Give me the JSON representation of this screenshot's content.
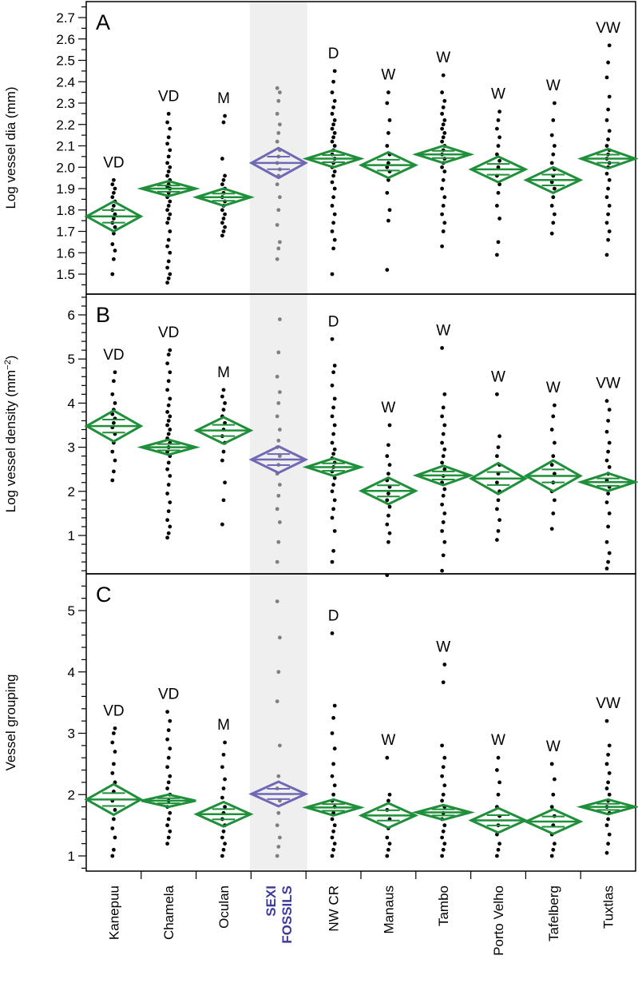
{
  "chart_data": {
    "type": "scatter",
    "figure_kind": "means-diamond dot plot (three stacked panels)",
    "categories": [
      "Kanepuu",
      "Chamela",
      "Oculan",
      "SEXI FOSSILS",
      "NW CR",
      "Manaus",
      "Tambo",
      "Porto Velho",
      "Tafelberg",
      "Tuxtlas"
    ],
    "category_label_lines": [
      [
        "Kanepuu"
      ],
      [
        "Chamela"
      ],
      [
        "Oculan"
      ],
      [
        "SEXI",
        "FOSSILS"
      ],
      [
        "NW CR"
      ],
      [
        "Manaus"
      ],
      [
        "Tambo"
      ],
      [
        "Porto Velho"
      ],
      [
        "Tafelberg"
      ],
      [
        "Tuxtlas"
      ]
    ],
    "highlight_category": "SEXI FOSSILS",
    "colors": {
      "diamond": "#1f8f3a",
      "fossil_diamond": "#6f68b4",
      "points": "#000000",
      "fossil_points": "#7f7f7f",
      "highlight_band": "#efefef",
      "highlight_label": "#3d3a9a"
    },
    "panels": [
      {
        "letter": "A",
        "ylabel": "Log  vessel dia (mm)",
        "ylim": [
          1.44,
          2.76
        ],
        "yticks": [
          1.5,
          1.6,
          1.7,
          1.8,
          1.9,
          2.0,
          2.1,
          2.2,
          2.3,
          2.4,
          2.5,
          2.6,
          2.7
        ],
        "ytick_labels": [
          "1.5",
          "1.6",
          "1.7",
          "1.8",
          "1.9",
          "2.0",
          "2.1",
          "2.2",
          "2.3",
          "2.4",
          "2.5",
          "2.6",
          "2.7"
        ],
        "group_labels": [
          "VD",
          "VD",
          "M",
          "",
          "D",
          "W",
          "W",
          "W",
          "W",
          "VW"
        ],
        "means": [
          1.77,
          1.9,
          1.86,
          2.02,
          2.04,
          2.01,
          2.06,
          1.99,
          1.94,
          2.04
        ],
        "ci_half": [
          0.07,
          0.035,
          0.04,
          0.07,
          0.04,
          0.06,
          0.04,
          0.06,
          0.06,
          0.045
        ],
        "points": [
          [
            1.5,
            1.57,
            1.61,
            1.64,
            1.69,
            1.72,
            1.74,
            1.76,
            1.78,
            1.8,
            1.82,
            1.84,
            1.86,
            1.88,
            1.9,
            1.92,
            1.94
          ],
          [
            1.46,
            1.48,
            1.5,
            1.53,
            1.56,
            1.6,
            1.63,
            1.66,
            1.7,
            1.74,
            1.76,
            1.78,
            1.8,
            1.82,
            1.84,
            1.86,
            1.88,
            1.9,
            1.91,
            1.92,
            1.94,
            1.96,
            1.98,
            2.0,
            2.02,
            2.05,
            2.08,
            2.11,
            2.14,
            2.18,
            2.21,
            2.25
          ],
          [
            1.68,
            1.7,
            1.72,
            1.74,
            1.76,
            1.78,
            1.8,
            1.82,
            1.84,
            1.86,
            1.88,
            1.9,
            1.92,
            1.94,
            1.96,
            2.04,
            2.21,
            2.24
          ],
          [
            1.57,
            1.62,
            1.65,
            1.73,
            1.8,
            1.86,
            1.92,
            1.96,
            1.99,
            2.02,
            2.05,
            2.08,
            2.12,
            2.16,
            2.2,
            2.25,
            2.31,
            2.35,
            2.37
          ],
          [
            1.5,
            1.62,
            1.66,
            1.7,
            1.74,
            1.78,
            1.82,
            1.86,
            1.9,
            1.93,
            1.96,
            1.98,
            2.0,
            2.02,
            2.04,
            2.06,
            2.08,
            2.1,
            2.12,
            2.14,
            2.16,
            2.18,
            2.2,
            2.22,
            2.25,
            2.28,
            2.31,
            2.35,
            2.4,
            2.45
          ],
          [
            1.52,
            1.75,
            1.8,
            1.88,
            1.94,
            1.98,
            2.0,
            2.02,
            2.06,
            2.1,
            2.16,
            2.22,
            2.3,
            2.35
          ],
          [
            1.63,
            1.7,
            1.74,
            1.78,
            1.82,
            1.86,
            1.9,
            1.94,
            1.98,
            2.0,
            2.02,
            2.04,
            2.06,
            2.08,
            2.1,
            2.12,
            2.14,
            2.16,
            2.18,
            2.2,
            2.22,
            2.25,
            2.28,
            2.31,
            2.35,
            2.43
          ],
          [
            1.59,
            1.65,
            1.76,
            1.82,
            1.88,
            1.92,
            1.96,
            2.0,
            2.03,
            2.06,
            2.1,
            2.14,
            2.18,
            2.22,
            2.26
          ],
          [
            1.69,
            1.74,
            1.78,
            1.82,
            1.86,
            1.9,
            1.93,
            1.96,
            1.99,
            2.02,
            2.06,
            2.1,
            2.15,
            2.22,
            2.3
          ],
          [
            1.59,
            1.66,
            1.7,
            1.74,
            1.78,
            1.82,
            1.86,
            1.9,
            1.94,
            1.97,
            2.0,
            2.02,
            2.04,
            2.06,
            2.08,
            2.1,
            2.13,
            2.17,
            2.22,
            2.27,
            2.33,
            2.42,
            2.49,
            2.57
          ]
        ]
      },
      {
        "letter": "B",
        "ylabel": "Log vessel density (mm",
        "ylabel_superscript": "−2",
        "ylabel_suffix": ")",
        "ylim": [
          0,
          6.4
        ],
        "yticks": [
          1,
          2,
          3,
          4,
          5,
          6
        ],
        "ytick_labels": [
          "1",
          "2",
          "3",
          "4",
          "5",
          "6"
        ],
        "group_labels": [
          "VD",
          "VD",
          "M",
          "",
          "D",
          "W",
          "W",
          "W",
          "W",
          "VW"
        ],
        "means": [
          3.48,
          3.0,
          3.38,
          2.72,
          2.55,
          2.01,
          2.36,
          2.29,
          2.35,
          2.21
        ],
        "ci_half": [
          0.35,
          0.17,
          0.3,
          0.3,
          0.2,
          0.3,
          0.22,
          0.35,
          0.35,
          0.2
        ],
        "points": [
          [
            2.25,
            2.45,
            2.7,
            2.9,
            3.1,
            3.3,
            3.45,
            3.55,
            3.65,
            3.75,
            3.85,
            4.0,
            4.2,
            4.5,
            4.7
          ],
          [
            0.95,
            1.05,
            1.2,
            1.35,
            1.55,
            1.75,
            1.95,
            2.15,
            2.35,
            2.5,
            2.65,
            2.8,
            2.9,
            3.0,
            3.1,
            3.2,
            3.3,
            3.4,
            3.5,
            3.6,
            3.7,
            3.8,
            3.95,
            4.1,
            4.3,
            4.5,
            4.7,
            4.9,
            5.1,
            5.2
          ],
          [
            1.25,
            1.8,
            2.2,
            2.7,
            2.9,
            3.1,
            3.25,
            3.4,
            3.55,
            3.7,
            3.85,
            4.0,
            4.15,
            4.3
          ],
          [
            0.4,
            0.85,
            1.3,
            1.6,
            1.9,
            2.15,
            2.4,
            2.6,
            2.8,
            3.0,
            3.15,
            3.4,
            3.7,
            4.0,
            4.25,
            4.6,
            5.15,
            5.9
          ],
          [
            0.4,
            0.65,
            1.1,
            1.4,
            1.6,
            1.8,
            2.0,
            2.15,
            2.3,
            2.45,
            2.55,
            2.65,
            2.75,
            2.85,
            2.95,
            3.1,
            3.3,
            3.5,
            3.7,
            3.9,
            4.1,
            4.4,
            4.7,
            4.85,
            5.45
          ],
          [
            0.1,
            0.85,
            1.05,
            1.25,
            1.45,
            1.65,
            1.8,
            1.95,
            2.1,
            2.25,
            2.4,
            2.6,
            2.8,
            3.05,
            3.5
          ],
          [
            0.2,
            0.55,
            0.85,
            1.1,
            1.3,
            1.5,
            1.7,
            1.9,
            2.05,
            2.2,
            2.35,
            2.5,
            2.65,
            2.8,
            2.95,
            3.1,
            3.3,
            3.5,
            3.7,
            3.9,
            4.2,
            5.25
          ],
          [
            0.9,
            1.1,
            1.35,
            1.6,
            1.8,
            2.0,
            2.2,
            2.4,
            2.6,
            2.8,
            3.0,
            3.25,
            4.2
          ],
          [
            1.15,
            1.5,
            1.8,
            2.0,
            2.2,
            2.4,
            2.6,
            2.8,
            3.1,
            3.4,
            3.7,
            3.95
          ],
          [
            0.25,
            0.4,
            0.6,
            0.85,
            1.2,
            1.5,
            1.75,
            1.95,
            2.1,
            2.25,
            2.4,
            2.55,
            2.7,
            2.9,
            3.1,
            3.35,
            3.6,
            3.85,
            4.05
          ]
        ]
      },
      {
        "letter": "C",
        "ylabel": "Vessel grouping",
        "ylim": [
          0.85,
          5.65
        ],
        "yticks": [
          1,
          2,
          3,
          4,
          5
        ],
        "ytick_labels": [
          "1",
          "2",
          "3",
          "4",
          "5"
        ],
        "group_labels": [
          "VD",
          "VD",
          "M",
          "",
          "D",
          "W",
          "W",
          "W",
          "W",
          "VW"
        ],
        "means": [
          1.92,
          1.9,
          1.68,
          2.01,
          1.79,
          1.66,
          1.71,
          1.58,
          1.56,
          1.8
        ],
        "ci_half": [
          0.25,
          0.1,
          0.2,
          0.2,
          0.13,
          0.2,
          0.12,
          0.2,
          0.2,
          0.12
        ],
        "points": [
          [
            1.0,
            1.1,
            1.3,
            1.45,
            1.6,
            1.75,
            1.9,
            2.05,
            2.2,
            2.35,
            2.5,
            2.7,
            2.85,
            3.0,
            3.08
          ],
          [
            1.2,
            1.3,
            1.4,
            1.5,
            1.6,
            1.7,
            1.8,
            1.9,
            2.0,
            2.1,
            2.2,
            2.3,
            2.45,
            2.6,
            2.75,
            2.9,
            3.05,
            3.2,
            3.35
          ],
          [
            1.0,
            1.1,
            1.2,
            1.3,
            1.4,
            1.5,
            1.6,
            1.7,
            1.8,
            1.95,
            2.1,
            2.25,
            2.45,
            2.65,
            2.85
          ],
          [
            1.0,
            1.15,
            1.3,
            1.5,
            1.7,
            1.9,
            2.1,
            2.3,
            2.8,
            3.52,
            4.0,
            4.56,
            5.15
          ],
          [
            1.0,
            1.1,
            1.2,
            1.3,
            1.4,
            1.5,
            1.6,
            1.7,
            1.8,
            1.9,
            2.0,
            2.15,
            2.3,
            2.5,
            2.75,
            3.0,
            3.25,
            3.45,
            4.63
          ],
          [
            1.0,
            1.1,
            1.2,
            1.3,
            1.45,
            1.6,
            1.75,
            1.9,
            2.0,
            2.6
          ],
          [
            1.0,
            1.1,
            1.2,
            1.3,
            1.4,
            1.5,
            1.6,
            1.7,
            1.8,
            1.9,
            2.0,
            2.15,
            2.3,
            2.45,
            2.6,
            2.8,
            3.83,
            4.12
          ],
          [
            1.0,
            1.1,
            1.2,
            1.35,
            1.5,
            1.65,
            1.8,
            2.0,
            2.2,
            2.4,
            2.6
          ],
          [
            1.0,
            1.1,
            1.2,
            1.35,
            1.5,
            1.65,
            1.8,
            2.0,
            2.25,
            2.5
          ],
          [
            1.05,
            1.2,
            1.35,
            1.5,
            1.6,
            1.7,
            1.8,
            1.9,
            2.0,
            2.1,
            2.2,
            2.35,
            2.5,
            2.65,
            2.8,
            3.2
          ]
        ]
      }
    ]
  }
}
